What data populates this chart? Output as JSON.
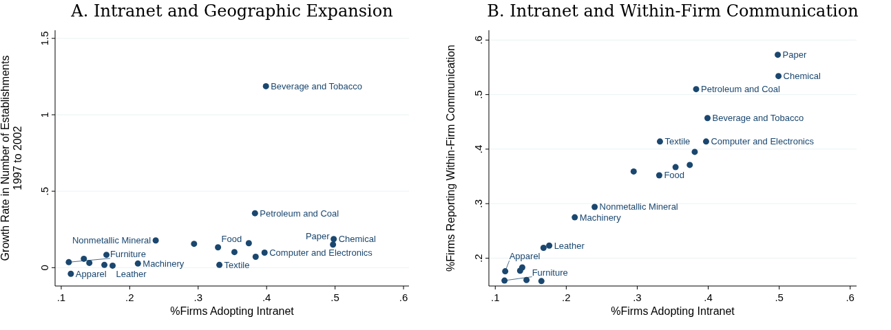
{
  "chart_data": [
    {
      "type": "scatter",
      "title": "A. Intranet and Geographic Expansion",
      "xlabel": "%Firms Adopting Intranet",
      "ylabel": "Growth Rate in Number of Establishments\n1997 to 2002",
      "xlim": [
        0.091,
        0.608
      ],
      "ylim": [
        -0.12,
        1.553
      ],
      "xticks": [
        {
          "value": 0.1,
          "label": ".1"
        },
        {
          "value": 0.2,
          "label": ".2"
        },
        {
          "value": 0.3,
          "label": ".3"
        },
        {
          "value": 0.4,
          "label": ".4"
        },
        {
          "value": 0.5,
          "label": ".5"
        },
        {
          "value": 0.6,
          "label": ".6"
        }
      ],
      "yticks": [
        0,
        {
          "value": 0.5,
          "label": ".5"
        },
        1,
        1.5
      ],
      "grid": "y",
      "marker": "circle",
      "series": [
        {
          "color": "#1a476f",
          "x": [
            0.399,
            0.383,
            0.238,
            0.294,
            0.329,
            0.374,
            0.353,
            0.384,
            0.397,
            0.498,
            0.497,
            0.331,
            0.212,
            0.175,
            0.163,
            0.166,
            0.133,
            0.111,
            0.141,
            0.114
          ],
          "values": [
            1.187,
            0.356,
            0.178,
            0.156,
            0.133,
            0.16,
            0.102,
            0.071,
            0.098,
            0.187,
            0.151,
            0.018,
            0.027,
            0.013,
            0.018,
            0.084,
            0.058,
            0.036,
            0.031,
            -0.04
          ]
        }
      ],
      "annotations": [
        {
          "text": "Beverage and Tobacco",
          "x": 0.399,
          "y": 1.187
        },
        {
          "text": "Petroleum and Coal",
          "x": 0.383,
          "y": 0.356
        },
        {
          "text": "Nonmetallic Mineral",
          "x": 0.238,
          "y": 0.178
        },
        {
          "text": "Food",
          "x": 0.329,
          "y": 0.133
        },
        {
          "text": "Computer and Electronics",
          "x": 0.397,
          "y": 0.098
        },
        {
          "text": "Chemical",
          "x": 0.498,
          "y": 0.187
        },
        {
          "text": "Paper",
          "x": 0.497,
          "y": 0.151
        },
        {
          "text": "Textile",
          "x": 0.331,
          "y": 0.018
        },
        {
          "text": "Machinery",
          "x": 0.212,
          "y": 0.027
        },
        {
          "text": "Leather",
          "x": 0.175,
          "y": 0.013
        },
        {
          "text": "Furniture",
          "x": 0.111,
          "y": 0.036
        },
        {
          "text": "Apparel",
          "x": 0.114,
          "y": -0.04
        }
      ]
    },
    {
      "type": "scatter",
      "title": "B. Intranet and Within-Firm Communication",
      "xlabel": "%Firms Adopting Intranet",
      "ylabel": "%Firms Reporting Within-Firm Communication",
      "xlim": [
        0.091,
        0.609
      ],
      "ylim": [
        0.149,
        0.618
      ],
      "xticks": [
        {
          "value": 0.1,
          "label": ".1"
        },
        {
          "value": 0.2,
          "label": ".2"
        },
        {
          "value": 0.3,
          "label": ".3"
        },
        {
          "value": 0.4,
          "label": ".4"
        },
        {
          "value": 0.5,
          "label": ".5"
        },
        {
          "value": 0.6,
          "label": ".6"
        }
      ],
      "yticks": [
        {
          "value": 0.2,
          "label": ".2"
        },
        {
          "value": 0.3,
          "label": ".3"
        },
        {
          "value": 0.4,
          "label": ".4"
        },
        {
          "value": 0.5,
          "label": ".5"
        },
        {
          "value": 0.6,
          "label": ".6"
        }
      ],
      "grid": "y",
      "marker": "circle",
      "series": [
        {
          "color": "#1a476f",
          "x": [
            0.498,
            0.499,
            0.383,
            0.399,
            0.397,
            0.332,
            0.381,
            0.374,
            0.354,
            0.295,
            0.331,
            0.24,
            0.212,
            0.176,
            0.168,
            0.114,
            0.138,
            0.135,
            0.113,
            0.144,
            0.165
          ],
          "values": [
            0.573,
            0.534,
            0.51,
            0.457,
            0.414,
            0.414,
            0.395,
            0.371,
            0.367,
            0.359,
            0.352,
            0.294,
            0.275,
            0.223,
            0.219,
            0.176,
            0.183,
            0.177,
            0.159,
            0.16,
            0.158
          ]
        }
      ],
      "annotations": [
        {
          "text": "Paper",
          "x": 0.498,
          "y": 0.573
        },
        {
          "text": "Chemical",
          "x": 0.499,
          "y": 0.534
        },
        {
          "text": "Petroleum and Coal",
          "x": 0.383,
          "y": 0.51
        },
        {
          "text": "Beverage and Tobacco",
          "x": 0.399,
          "y": 0.457
        },
        {
          "text": "Computer and Electronics",
          "x": 0.397,
          "y": 0.414
        },
        {
          "text": "Textile",
          "x": 0.332,
          "y": 0.414
        },
        {
          "text": "Food",
          "x": 0.331,
          "y": 0.352
        },
        {
          "text": "Nonmetallic Mineral",
          "x": 0.24,
          "y": 0.294
        },
        {
          "text": "Machinery",
          "x": 0.212,
          "y": 0.275
        },
        {
          "text": "Leather",
          "x": 0.176,
          "y": 0.223
        },
        {
          "text": "Apparel",
          "x": 0.114,
          "y": 0.176
        },
        {
          "text": "Furniture",
          "x": 0.113,
          "y": 0.159
        }
      ]
    }
  ]
}
